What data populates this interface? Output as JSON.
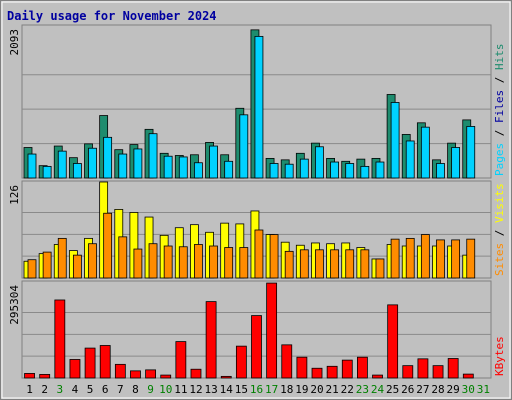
{
  "colors": {
    "frame": "#c0c0c0",
    "plot_bg": "#c0c0c0",
    "title": "#0000a0",
    "hits": "#1e8c6e",
    "files": "#00d2ff",
    "pages": "#00d2ff",
    "visits": "#ffff00",
    "sites": "#ff8c00",
    "kbytes": "#ff0000",
    "weekday": "#000000",
    "weekend": "#008000"
  },
  "chart_data": {
    "type": "bar",
    "title": "Daily usage for November 2024",
    "days": [
      "1",
      "2",
      "3",
      "4",
      "5",
      "6",
      "7",
      "8",
      "9",
      "10",
      "11",
      "12",
      "13",
      "14",
      "15",
      "16",
      "17",
      "18",
      "19",
      "20",
      "21",
      "22",
      "23",
      "24",
      "25",
      "26",
      "27",
      "28",
      "29",
      "30",
      "31"
    ],
    "weekend_days": [
      "3",
      "9",
      "10",
      "16",
      "17",
      "23",
      "24",
      "30",
      "31"
    ],
    "panels": [
      {
        "id": "hits",
        "ymax_label": "2093",
        "ymax": 2093,
        "side_label": {
          "parts": [
            "Pages",
            "Files",
            "Hits"
          ],
          "colors": [
            "#00d2ff",
            "#0000a0",
            "#1e8c6e"
          ]
        },
        "series": [
          {
            "name": "Hits",
            "color": "#1e8c6e",
            "values": [
              420,
              170,
              440,
              280,
              470,
              860,
              390,
              460,
              670,
              340,
              310,
              320,
              490,
              320,
              960,
              2040,
              270,
              250,
              340,
              480,
              270,
              230,
              260,
              270,
              1150,
              600,
              760,
              250,
              480,
              800,
              0
            ]
          },
          {
            "name": "Files",
            "color": "#00d2ff",
            "values": [
              330,
              160,
              370,
              200,
              410,
              560,
              330,
              400,
              610,
              300,
              290,
              210,
              440,
              230,
              870,
              1950,
              200,
              190,
              260,
              430,
              220,
              200,
              160,
              220,
              1040,
              510,
              700,
              200,
              420,
              710,
              0
            ]
          }
        ]
      },
      {
        "id": "visits",
        "ymax_label": "126",
        "ymax": 126,
        "side_label": {
          "parts": [
            "Sites",
            "Visits"
          ],
          "colors": [
            "#ff8c00",
            "#ffff00"
          ]
        },
        "series": [
          {
            "name": "Visits",
            "color": "#ffff00",
            "values": [
              22,
              32,
              44,
              36,
              52,
              126,
              90,
              86,
              80,
              56,
              66,
              70,
              60,
              72,
              71,
              88,
              57,
              47,
              43,
              46,
              45,
              46,
              40,
              25,
              44,
              42,
              42,
              42,
              42,
              30,
              0
            ]
          },
          {
            "name": "Sites",
            "color": "#ff8c00",
            "values": [
              24,
              34,
              52,
              30,
              45,
              85,
              54,
              38,
              45,
              42,
              41,
              44,
              42,
              40,
              40,
              63,
              57,
              35,
              37,
              37,
              37,
              37,
              37,
              25,
              51,
              52,
              57,
              50,
              50,
              51,
              0
            ]
          }
        ]
      },
      {
        "id": "kbytes",
        "ymax_label": "295304",
        "ymax": 295304,
        "side_label": {
          "parts": [
            "KBytes"
          ],
          "colors": [
            "#ff0000"
          ]
        },
        "series": [
          {
            "name": "KBytes",
            "color": "#ff0000",
            "values": [
              14000,
              11000,
              240000,
              57000,
              92000,
              100000,
              42000,
              22000,
              25000,
              9000,
              112000,
              27000,
              235000,
              5000,
              98000,
              192000,
              292000,
              102000,
              64000,
              30000,
              36000,
              55000,
              64000,
              9000,
              225000,
              38000,
              59000,
              38000,
              60000,
              12000,
              0
            ]
          }
        ]
      }
    ]
  }
}
